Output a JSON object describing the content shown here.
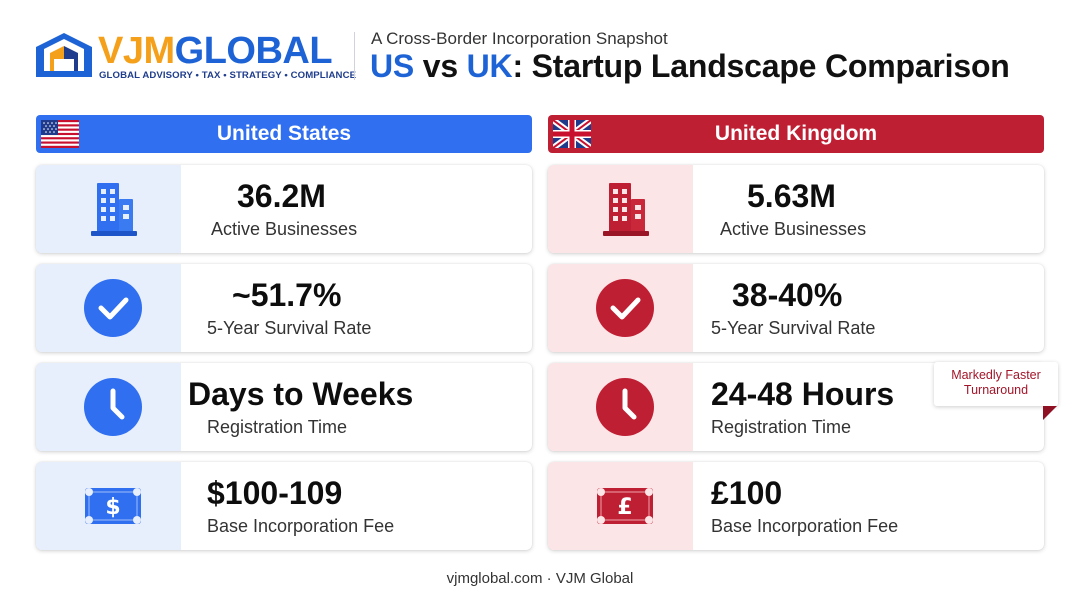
{
  "brand": {
    "part1": "VJM",
    "part2": "GLOBAL",
    "tagline": "GLOBAL ADVISORY • TAX • STRATEGY • COMPLIANCE",
    "colors": {
      "orange": "#f5a01a",
      "blue": "#1e63d6",
      "navy": "#1f3d8c"
    }
  },
  "header": {
    "subtitle": "A Cross-Border Incorporation Snapshot",
    "title_us": "US",
    "title_vs": " vs ",
    "title_uk": "UK",
    "title_rest": ": Startup Landscape Comparison"
  },
  "columns": {
    "us": {
      "name": "United States",
      "flag": "us-flag-icon",
      "accent": "#2f6ff0",
      "rows": [
        {
          "icon": "building-icon",
          "value": "36.2M",
          "label": "Active Businesses"
        },
        {
          "icon": "checkmark-icon",
          "value": "~51.7%",
          "label": "5-Year Survival Rate"
        },
        {
          "icon": "clock-icon",
          "value": "Days to Weeks",
          "label": "Registration Time"
        },
        {
          "icon": "dollar-bill-icon",
          "value": "$100-109",
          "label": "Base Incorporation Fee"
        }
      ]
    },
    "uk": {
      "name": "United Kingdom",
      "flag": "uk-flag-icon",
      "accent": "#bf1f33",
      "rows": [
        {
          "icon": "building-icon",
          "value": "5.63M",
          "label": "Active Businesses"
        },
        {
          "icon": "checkmark-icon",
          "value": "38-40%",
          "label": "5-Year Survival Rate"
        },
        {
          "icon": "clock-icon",
          "value": "24-48 Hours",
          "label": "Registration Time"
        },
        {
          "icon": "pound-bill-icon",
          "value": "£100",
          "label": "Base Incorporation Fee"
        }
      ]
    }
  },
  "badge": {
    "line1": "Markedly Faster",
    "line2": "Turnaround"
  },
  "footer": {
    "text": "vjmglobal.com · VJM Global"
  }
}
